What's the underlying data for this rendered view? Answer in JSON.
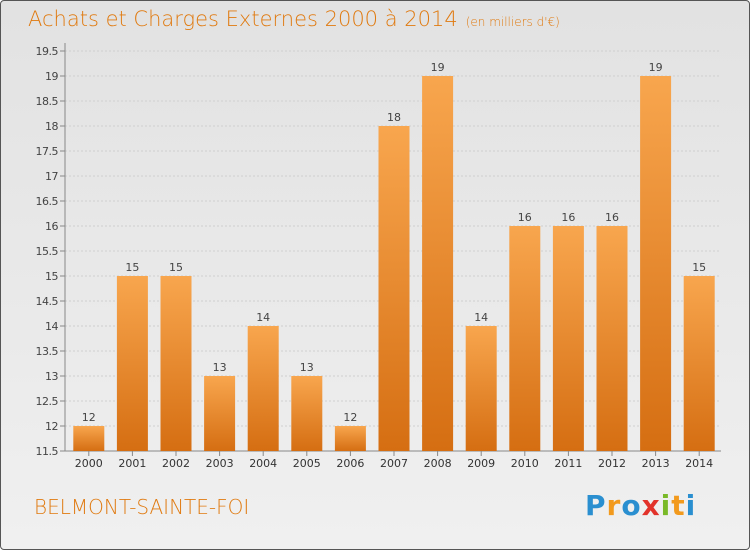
{
  "title": "Achats et Charges Externes 2000 à 2014",
  "unit": "(en milliers d'€)",
  "location": "BELMONT-SAINTE-FOI",
  "logo": {
    "text": "Proxiti",
    "letters": [
      {
        "char": "P",
        "color": "#2a8fd0"
      },
      {
        "char": "r",
        "color": "#f29a1d"
      },
      {
        "char": "o",
        "color": "#2a8fd0"
      },
      {
        "char": "x",
        "color": "#e2332b"
      },
      {
        "char": "i",
        "color": "#79b928"
      },
      {
        "char": "t",
        "color": "#f29a1d"
      },
      {
        "char": "i",
        "color": "#2a8fd0"
      }
    ]
  },
  "colors": {
    "bar_top": "#f8a64e",
    "bar_bottom": "#d56e12",
    "accent": "#e07a10",
    "grid": "#cfcfcf"
  },
  "chart_data": {
    "type": "bar",
    "title": "Achats et Charges Externes 2000 à 2014",
    "subtitle": "(en milliers d'€)",
    "categories": [
      "2000",
      "2001",
      "2002",
      "2003",
      "2004",
      "2005",
      "2006",
      "2007",
      "2008",
      "2009",
      "2010",
      "2011",
      "2012",
      "2013",
      "2014"
    ],
    "values": [
      12,
      15,
      15,
      13,
      14,
      13,
      12,
      18,
      19,
      14,
      16,
      16,
      16,
      19,
      15
    ],
    "labels": [
      "12",
      "15",
      "15",
      "13",
      "14",
      "13",
      "12",
      "18",
      "19",
      "14",
      "16",
      "16",
      "16",
      "19",
      "15"
    ],
    "ylim": [
      11.5,
      19.5
    ],
    "yticks": [
      "11.5",
      "12",
      "12.5",
      "13",
      "13.5",
      "14",
      "14.5",
      "15",
      "15.5",
      "16",
      "16.5",
      "17",
      "17.5",
      "18",
      "18.5",
      "19",
      "19.5"
    ],
    "grid": true,
    "xlabel": "",
    "ylabel": ""
  }
}
